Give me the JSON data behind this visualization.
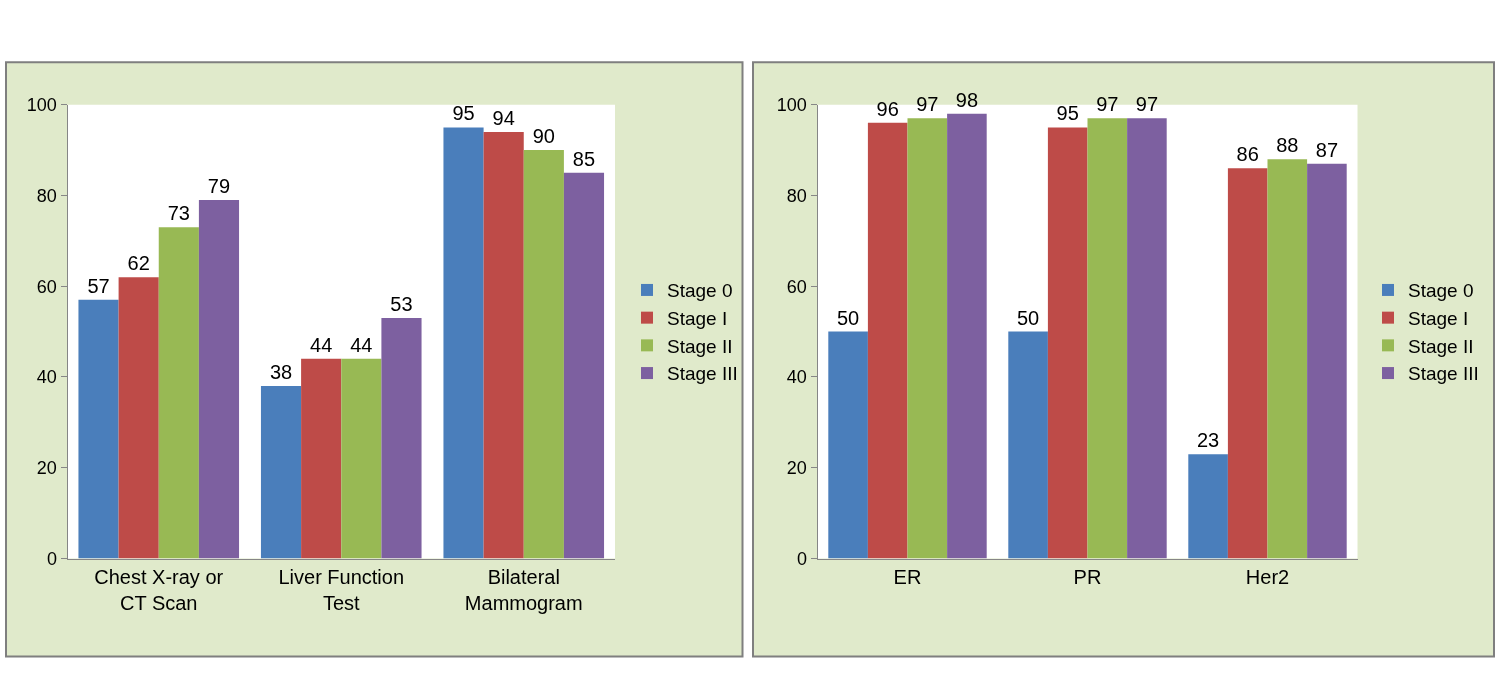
{
  "chart_data": [
    {
      "type": "bar",
      "categories": [
        "Chest X-ray or CT Scan",
        "Liver Function Test",
        "Bilateral Mammogram"
      ],
      "series": [
        {
          "name": "Stage 0",
          "color": "#4a7ebb",
          "values": [
            57,
            38,
            95
          ]
        },
        {
          "name": "Stage I",
          "color": "#be4b48",
          "values": [
            62,
            44,
            94
          ]
        },
        {
          "name": "Stage II",
          "color": "#98b954",
          "values": [
            73,
            44,
            90
          ]
        },
        {
          "name": "Stage III",
          "color": "#7d60a0",
          "values": [
            79,
            53,
            85
          ]
        }
      ],
      "ylim": [
        0,
        100
      ],
      "yticks": [
        0,
        20,
        40,
        60,
        80,
        100
      ],
      "data_labels": true,
      "legend": "right"
    },
    {
      "type": "bar",
      "categories": [
        "ER",
        "PR",
        "Her2"
      ],
      "series": [
        {
          "name": "Stage 0",
          "color": "#4a7ebb",
          "values": [
            50,
            50,
            23
          ]
        },
        {
          "name": "Stage I",
          "color": "#be4b48",
          "values": [
            96,
            95,
            86
          ]
        },
        {
          "name": "Stage II",
          "color": "#98b954",
          "values": [
            97,
            97,
            88
          ]
        },
        {
          "name": "Stage III",
          "color": "#7d60a0",
          "values": [
            98,
            97,
            87
          ]
        }
      ],
      "ylim": [
        0,
        100
      ],
      "yticks": [
        0,
        20,
        40,
        60,
        80,
        100
      ],
      "data_labels": true,
      "legend": "right"
    }
  ]
}
